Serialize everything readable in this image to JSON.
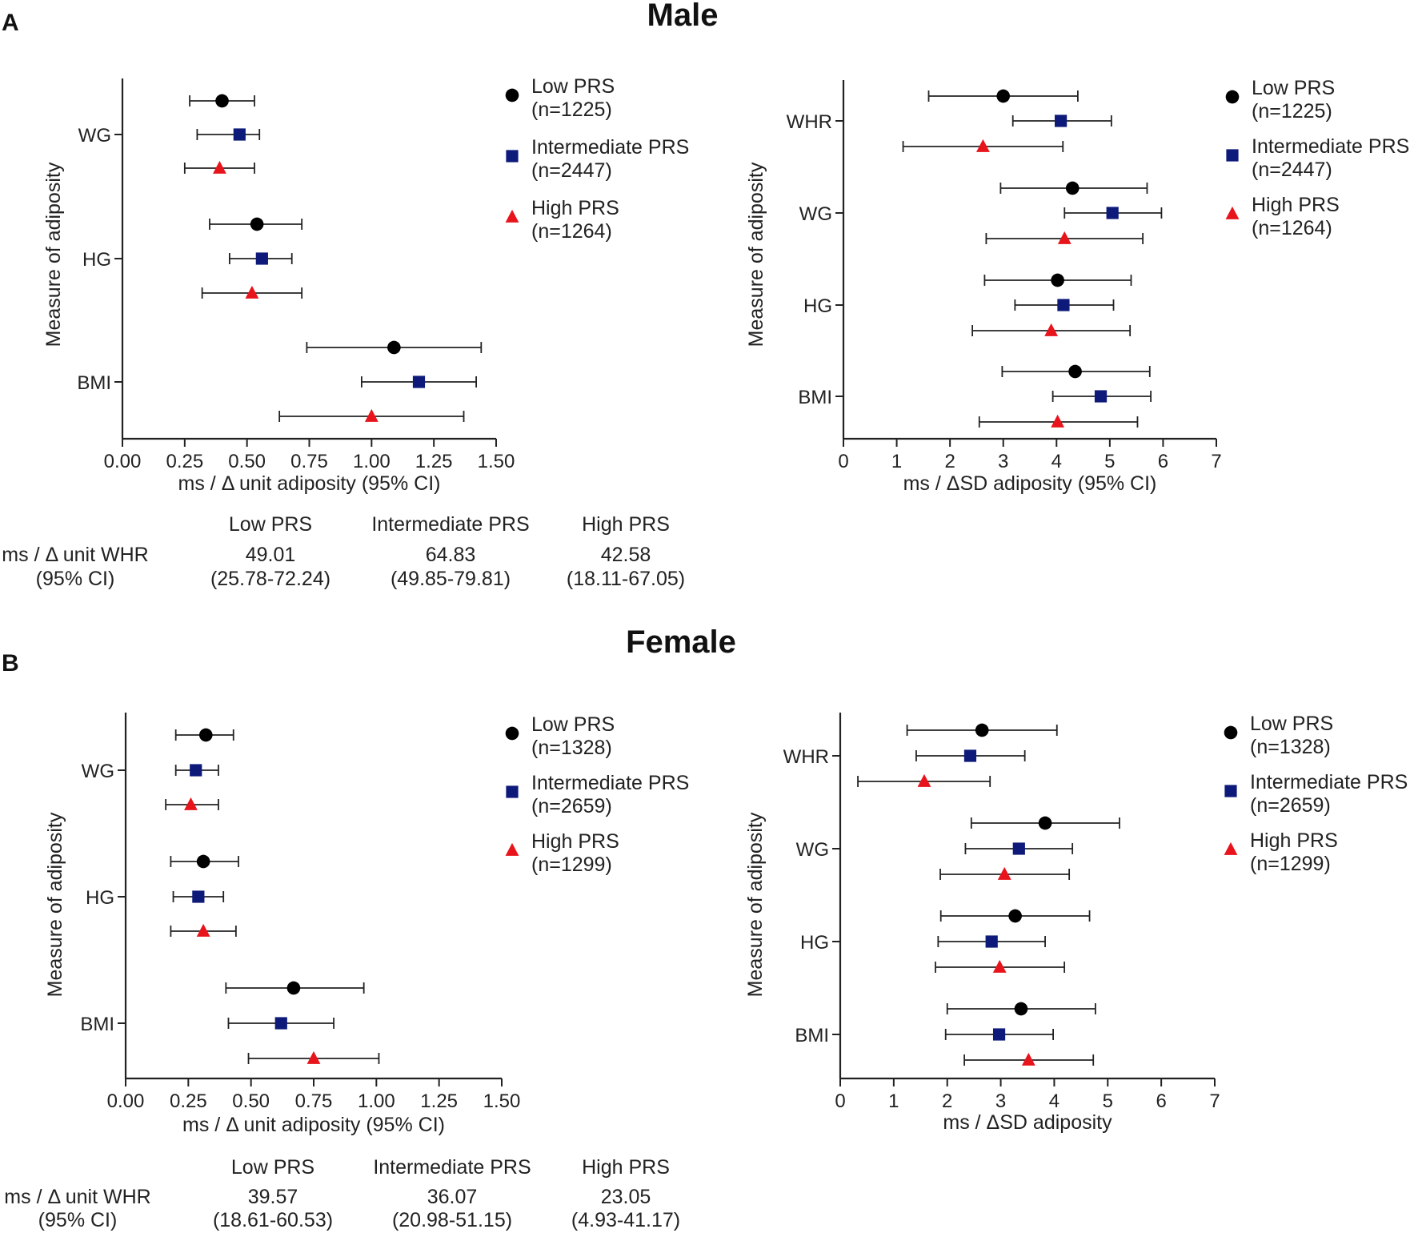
{
  "figure": {
    "panelA": {
      "letter": "A",
      "title": "Male"
    },
    "panelB": {
      "letter": "B",
      "title": "Female"
    }
  },
  "tables": {
    "male": {
      "headers": [
        "Low PRS",
        "Intermediate PRS",
        "High PRS"
      ],
      "row_label_1": "ms / Δ unit WHR",
      "row_label_2": "(95% CI)",
      "values": [
        "49.01",
        "64.83",
        "42.58"
      ],
      "cis": [
        "(25.78-72.24)",
        "(49.85-79.81)",
        "(18.11-67.05)"
      ]
    },
    "female": {
      "headers": [
        "Low PRS",
        "Intermediate PRS",
        "High PRS"
      ],
      "row_label_1": "ms / Δ unit WHR",
      "row_label_2": "(95% CI)",
      "values": [
        "39.57",
        "36.07",
        "23.05"
      ],
      "cis": [
        "(18.61-60.53)",
        "(20.98-51.15)",
        "(4.93-41.17)"
      ]
    }
  },
  "colors": {
    "low": "#000000",
    "intermediate": "#0d1a7a",
    "high": "#e8141c"
  },
  "chart_data": [
    {
      "type": "scatter",
      "panel": "A",
      "xlabel": "ms / Δ unit adiposity (95% CI)",
      "ylabel": "Measure of adiposity",
      "xlim": [
        0,
        1.5
      ],
      "xticks": [
        "0.00",
        "0.25",
        "0.50",
        "0.75",
        "1.00",
        "1.25",
        "1.50"
      ],
      "categories": [
        "WG",
        "HG",
        "BMI"
      ],
      "legend_placement": "right",
      "series": [
        {
          "name": "Low PRS",
          "n": "(n=1225)",
          "marker": "circle",
          "color": "#000000",
          "points": [
            {
              "cat": "WG",
              "est": 0.4,
              "lo": 0.27,
              "hi": 0.53
            },
            {
              "cat": "HG",
              "est": 0.54,
              "lo": 0.35,
              "hi": 0.72
            },
            {
              "cat": "BMI",
              "est": 1.09,
              "lo": 0.74,
              "hi": 1.44
            }
          ]
        },
        {
          "name": "Intermediate PRS",
          "n": "(n=2447)",
          "marker": "square",
          "color": "#0d1a7a",
          "points": [
            {
              "cat": "WG",
              "est": 0.47,
              "lo": 0.3,
              "hi": 0.55
            },
            {
              "cat": "HG",
              "est": 0.56,
              "lo": 0.43,
              "hi": 0.68
            },
            {
              "cat": "BMI",
              "est": 1.19,
              "lo": 0.96,
              "hi": 1.42
            }
          ]
        },
        {
          "name": "High PRS",
          "n": "(n=1264)",
          "marker": "triangle",
          "color": "#e8141c",
          "points": [
            {
              "cat": "WG",
              "est": 0.39,
              "lo": 0.25,
              "hi": 0.53
            },
            {
              "cat": "HG",
              "est": 0.52,
              "lo": 0.32,
              "hi": 0.72
            },
            {
              "cat": "BMI",
              "est": 1.0,
              "lo": 0.63,
              "hi": 1.37
            }
          ]
        }
      ]
    },
    {
      "type": "scatter",
      "panel": "A",
      "xlabel": "ms / ΔSD adiposity (95% CI)",
      "ylabel": "Measure of adiposity",
      "xlim": [
        0,
        7
      ],
      "xticks": [
        "0",
        "1",
        "2",
        "3",
        "4",
        "5",
        "6",
        "7"
      ],
      "categories": [
        "WHR",
        "WG",
        "HG",
        "BMI"
      ],
      "legend_placement": "right",
      "series": [
        {
          "name": "Low PRS",
          "n": "(n=1225)",
          "marker": "circle",
          "color": "#000000",
          "points": [
            {
              "cat": "WHR",
              "est": 3.0,
              "lo": 1.6,
              "hi": 4.4
            },
            {
              "cat": "WG",
              "est": 4.3,
              "lo": 2.95,
              "hi": 5.7
            },
            {
              "cat": "HG",
              "est": 4.02,
              "lo": 2.65,
              "hi": 5.4
            },
            {
              "cat": "BMI",
              "est": 4.35,
              "lo": 2.98,
              "hi": 5.75
            }
          ]
        },
        {
          "name": "Intermediate PRS",
          "n": "(n=2447)",
          "marker": "square",
          "color": "#0d1a7a",
          "points": [
            {
              "cat": "WHR",
              "est": 4.08,
              "lo": 3.18,
              "hi": 5.03
            },
            {
              "cat": "WG",
              "est": 5.05,
              "lo": 4.15,
              "hi": 5.97
            },
            {
              "cat": "HG",
              "est": 4.13,
              "lo": 3.22,
              "hi": 5.07
            },
            {
              "cat": "BMI",
              "est": 4.83,
              "lo": 3.93,
              "hi": 5.77
            }
          ]
        },
        {
          "name": "High PRS",
          "n": "(n=1264)",
          "marker": "triangle",
          "color": "#e8141c",
          "points": [
            {
              "cat": "WHR",
              "est": 2.62,
              "lo": 1.12,
              "hi": 4.12
            },
            {
              "cat": "WG",
              "est": 4.15,
              "lo": 2.68,
              "hi": 5.62
            },
            {
              "cat": "HG",
              "est": 3.9,
              "lo": 2.42,
              "hi": 5.38
            },
            {
              "cat": "BMI",
              "est": 4.02,
              "lo": 2.55,
              "hi": 5.52
            }
          ]
        }
      ]
    },
    {
      "type": "scatter",
      "panel": "B",
      "xlabel": "ms / Δ unit adiposity (95% CI)",
      "ylabel": "Measure of adiposity",
      "xlim": [
        0,
        1.5
      ],
      "xticks": [
        "0.00",
        "0.25",
        "0.50",
        "0.75",
        "1.00",
        "1.25",
        "1.50"
      ],
      "categories": [
        "WG",
        "HG",
        "BMI"
      ],
      "legend_placement": "right",
      "series": [
        {
          "name": "Low PRS",
          "n": "(n=1328)",
          "marker": "circle",
          "color": "#000000",
          "points": [
            {
              "cat": "WG",
              "est": 0.32,
              "lo": 0.2,
              "hi": 0.43
            },
            {
              "cat": "HG",
              "est": 0.31,
              "lo": 0.18,
              "hi": 0.45
            },
            {
              "cat": "BMI",
              "est": 0.67,
              "lo": 0.4,
              "hi": 0.95
            }
          ]
        },
        {
          "name": "Intermediate PRS",
          "n": "(n=2659)",
          "marker": "square",
          "color": "#0d1a7a",
          "points": [
            {
              "cat": "WG",
              "est": 0.28,
              "lo": 0.2,
              "hi": 0.37
            },
            {
              "cat": "HG",
              "est": 0.29,
              "lo": 0.19,
              "hi": 0.39
            },
            {
              "cat": "BMI",
              "est": 0.62,
              "lo": 0.41,
              "hi": 0.83
            }
          ]
        },
        {
          "name": "High PRS",
          "n": "(n=1299)",
          "marker": "triangle",
          "color": "#e8141c",
          "points": [
            {
              "cat": "WG",
              "est": 0.26,
              "lo": 0.16,
              "hi": 0.37
            },
            {
              "cat": "HG",
              "est": 0.31,
              "lo": 0.18,
              "hi": 0.44
            },
            {
              "cat": "BMI",
              "est": 0.75,
              "lo": 0.49,
              "hi": 1.01
            }
          ]
        }
      ]
    },
    {
      "type": "scatter",
      "panel": "B",
      "xlabel": "ms / ΔSD adiposity",
      "ylabel": "Measure of adiposity",
      "xlim": [
        0,
        7
      ],
      "xticks": [
        "0",
        "1",
        "2",
        "3",
        "4",
        "5",
        "6",
        "7"
      ],
      "categories": [
        "WHR",
        "WG",
        "HG",
        "BMI"
      ],
      "legend_placement": "right",
      "series": [
        {
          "name": "Low PRS",
          "n": "(n=1328)",
          "marker": "circle",
          "color": "#000000",
          "points": [
            {
              "cat": "WHR",
              "est": 2.65,
              "lo": 1.25,
              "hi": 4.05
            },
            {
              "cat": "WG",
              "est": 3.83,
              "lo": 2.45,
              "hi": 5.22
            },
            {
              "cat": "HG",
              "est": 3.27,
              "lo": 1.88,
              "hi": 4.66
            },
            {
              "cat": "BMI",
              "est": 3.38,
              "lo": 2.0,
              "hi": 4.77
            }
          ]
        },
        {
          "name": "Intermediate PRS",
          "n": "(n=2659)",
          "marker": "square",
          "color": "#0d1a7a",
          "points": [
            {
              "cat": "WHR",
              "est": 2.43,
              "lo": 1.42,
              "hi": 3.45
            },
            {
              "cat": "WG",
              "est": 3.34,
              "lo": 2.34,
              "hi": 4.34
            },
            {
              "cat": "HG",
              "est": 2.83,
              "lo": 1.83,
              "hi": 3.83
            },
            {
              "cat": "BMI",
              "est": 2.97,
              "lo": 1.97,
              "hi": 3.98
            }
          ]
        },
        {
          "name": "High PRS",
          "n": "(n=1299)",
          "marker": "triangle",
          "color": "#e8141c",
          "points": [
            {
              "cat": "WHR",
              "est": 1.57,
              "lo": 0.33,
              "hi": 2.8
            },
            {
              "cat": "WG",
              "est": 3.07,
              "lo": 1.87,
              "hi": 4.28
            },
            {
              "cat": "HG",
              "est": 2.98,
              "lo": 1.78,
              "hi": 4.19
            },
            {
              "cat": "BMI",
              "est": 3.52,
              "lo": 2.32,
              "hi": 4.73
            }
          ]
        }
      ]
    }
  ]
}
